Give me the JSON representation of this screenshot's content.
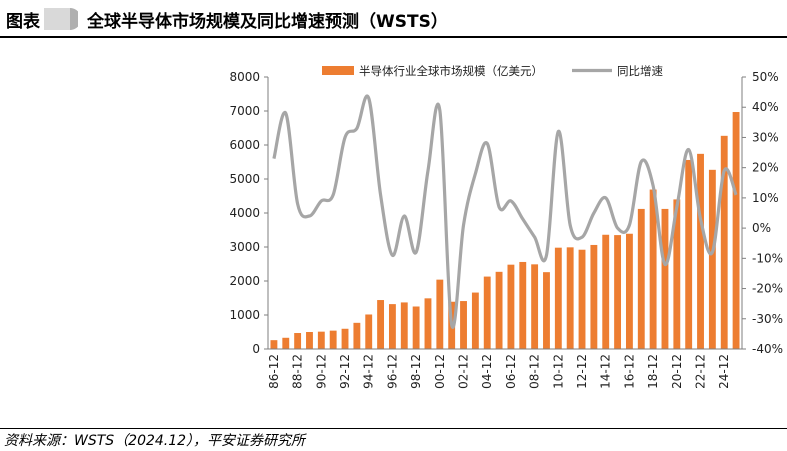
{
  "header": {
    "figure_label": "图表",
    "title": "全球半导体市场规模及同比增速预测（WSTS）"
  },
  "source": "资料来源：WSTS（2024.12），平安证券研究所",
  "colors": {
    "bar": "#ED7D31",
    "line": "#A6A6A6"
  },
  "chart_data": {
    "type": "bar",
    "title": "",
    "categories": [
      "86",
      "87",
      "88",
      "89",
      "90",
      "91",
      "92",
      "93",
      "94",
      "95",
      "96",
      "97",
      "98",
      "99",
      "00",
      "01",
      "02",
      "03",
      "04",
      "05",
      "06",
      "07",
      "08",
      "09",
      "10",
      "11",
      "12",
      "13",
      "14",
      "15",
      "16",
      "17",
      "18",
      "19",
      "20",
      "21",
      "22",
      "23",
      "24",
      "25"
    ],
    "x_tick_labels": [
      "86-12",
      "88-12",
      "90-12",
      "92-12",
      "94-12",
      "96-12",
      "98-12",
      "00-12",
      "02-12",
      "04-12",
      "06-12",
      "08-12",
      "10-12",
      "12-12",
      "14-12",
      "16-12",
      "18-12",
      "20-12",
      "22-12",
      "24-12"
    ],
    "series": [
      {
        "name": "半导体行业全球市场规模（亿美元）",
        "type": "bar",
        "axis": "left",
        "values": [
          260,
          330,
          470,
          500,
          510,
          540,
          595,
          770,
          1015,
          1440,
          1320,
          1370,
          1250,
          1490,
          2040,
          1390,
          1410,
          1660,
          2130,
          2270,
          2480,
          2560,
          2490,
          2260,
          2980,
          2990,
          2920,
          3060,
          3360,
          3350,
          3390,
          4120,
          4690,
          4120,
          4400,
          5560,
          5740,
          5270,
          6270,
          6970
        ]
      },
      {
        "name": "同比增速",
        "type": "line",
        "axis": "right",
        "values": [
          23,
          38,
          8,
          4,
          9,
          11,
          30,
          33,
          43,
          11,
          -9,
          4,
          -8,
          19,
          39,
          -32,
          1,
          18,
          28,
          7,
          9,
          3,
          -3,
          -9,
          32,
          1,
          -3,
          5,
          10,
          0,
          1,
          22,
          14,
          -12,
          7,
          26,
          3,
          -8,
          19,
          11
        ]
      }
    ],
    "y_left": {
      "min": 0,
      "max": 8000,
      "ticks": [
        "0",
        "1000",
        "2000",
        "3000",
        "4000",
        "5000",
        "6000",
        "7000",
        "8000"
      ]
    },
    "y_right": {
      "min": -40,
      "max": 50,
      "ticks": [
        "-40%",
        "-30%",
        "-20%",
        "-10%",
        "0%",
        "10%",
        "20%",
        "30%",
        "40%",
        "50%"
      ]
    },
    "legend_position": "top",
    "grid": false
  }
}
